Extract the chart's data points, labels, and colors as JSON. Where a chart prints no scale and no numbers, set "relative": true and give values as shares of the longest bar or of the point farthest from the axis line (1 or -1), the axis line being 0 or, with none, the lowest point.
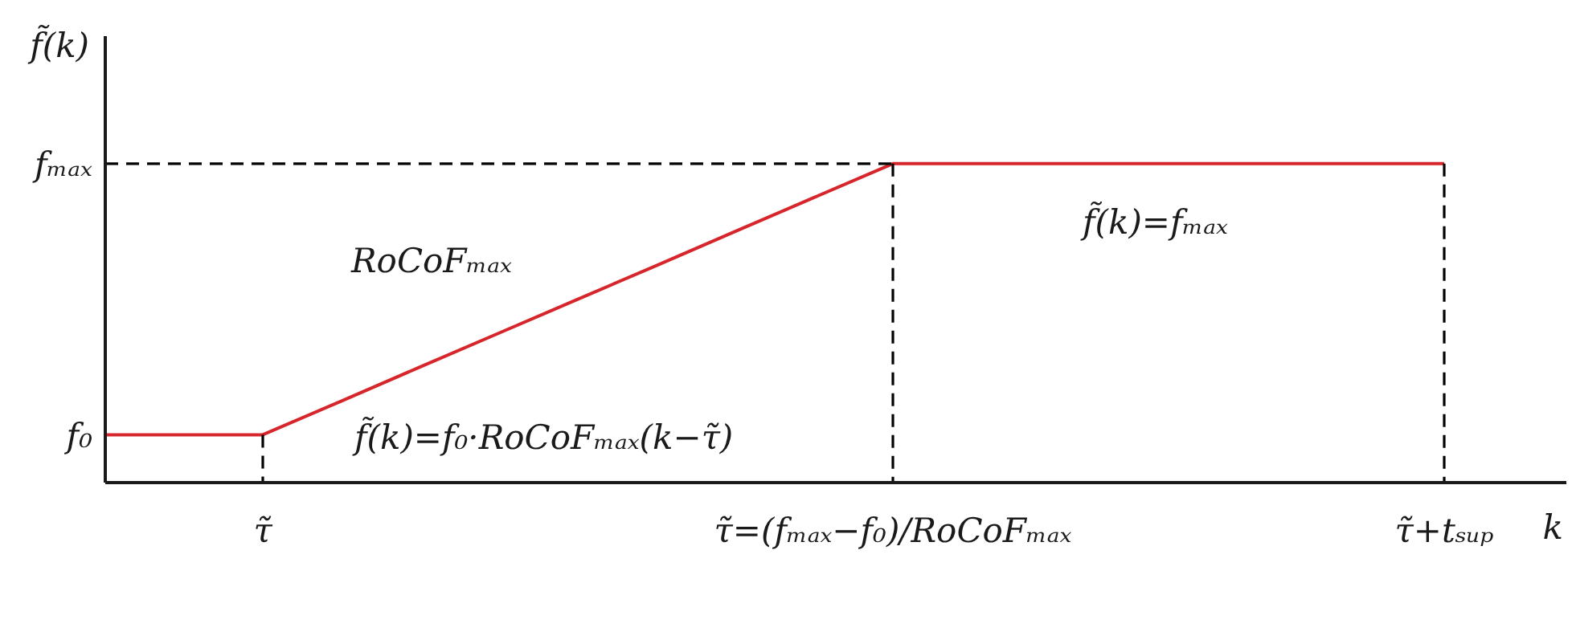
{
  "chart_data": {
    "type": "line",
    "relative": true,
    "xlabel": "k",
    "ylabel": "f̃(k)",
    "categories": [
      null,
      null,
      "τ̃",
      null,
      null,
      null,
      null,
      null,
      null,
      null,
      "τ̃=(fₘₐₓ−f₀)/RoCoFₘₐₓ",
      null,
      null,
      null,
      null,
      null,
      null,
      "τ̃+tₛᵤₚ"
    ],
    "series": [
      {
        "color": "#d7262b",
        "line_style": "solid",
        "values": [
          0.15,
          0.15,
          0.15,
          0.256,
          0.363,
          0.469,
          0.575,
          0.681,
          0.788,
          0.894,
          1,
          1,
          1,
          1,
          1,
          1,
          1,
          1
        ]
      },
      {
        "color": "#000000",
        "line_style": "dashed",
        "values": [
          1,
          1,
          1,
          1,
          1,
          1,
          1,
          1,
          1,
          1,
          1,
          null,
          null,
          null,
          null,
          null,
          null,
          null
        ]
      },
      {
        "color": "#000000",
        "line_style": "dashed",
        "x": [
          "τ̃",
          "τ̃"
        ],
        "values": [
          0.15,
          0
        ]
      },
      {
        "color": "#000000",
        "line_style": "dashed",
        "x": [
          "τ̃=(fₘₐₓ−f₀)/RoCoFₘₐₓ",
          "τ̃=(fₘₐₓ−f₀)/RoCoFₘₐₓ"
        ],
        "values": [
          1,
          0
        ]
      },
      {
        "color": "#000000",
        "line_style": "dashed",
        "x": [
          "τ̃+tₛᵤₚ",
          "τ̃+tₛᵤₚ"
        ],
        "values": [
          1,
          0
        ]
      }
    ],
    "annotations": [
      "f₀",
      "fₘₐₓ",
      "RoCoFₘₐₓ",
      "f̃(k)=f₀·RoCoFₘₐₓ(k−τ̃)",
      "f̃(k)=fₘₐₓ"
    ]
  }
}
